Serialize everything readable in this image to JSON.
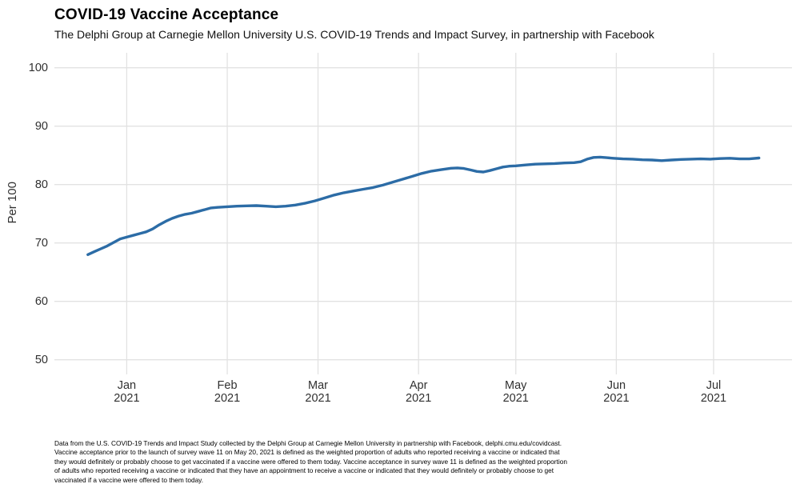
{
  "header": {
    "title": "COVID-19 Vaccine Acceptance",
    "subtitle": "The Delphi Group at Carnegie Mellon University U.S. COVID-19 Trends and Impact Survey, in partnership with Facebook"
  },
  "footnote": {
    "lines": [
      "Data from the U.S. COVID-19 Trends and Impact Study collected by the Delphi Group at Carnegie Mellon University in partnership with Facebook, delphi.cmu.edu/covidcast.",
      "Vaccine acceptance prior to the launch of survey wave 11 on May 20, 2021 is defined as the weighted proportion of adults who reported receiving a vaccine or indicated that",
      "they would definitely or probably choose to get vaccinated if a vaccine were offered to them today. Vaccine acceptance in survey wave 11 is defined as the weighted proportion",
      "of adults who reported receiving a vaccine or indicated that they have an appointment to receive a vaccine or indicated that they would definitely or probably choose to get",
      "vaccinated if a vaccine were offered to them today."
    ]
  },
  "chart_data": {
    "type": "line",
    "title": "COVID-19 Vaccine Acceptance",
    "xlabel": "",
    "ylabel": "Per 100",
    "ylim": [
      50,
      100
    ],
    "x_range": [
      "2020-12-20",
      "2021-07-15"
    ],
    "grid": true,
    "legend": "none",
    "colors": {
      "line": "#2c6ca6",
      "grid": "#e2e2e2",
      "tick_text": "#303030",
      "background": "#ffffff"
    },
    "y_ticks": [
      100,
      90,
      80,
      70,
      60,
      50
    ],
    "x_ticks": [
      {
        "date": "2021-01-01",
        "month": "Jan",
        "year": "2021"
      },
      {
        "date": "2021-02-01",
        "month": "Feb",
        "year": "2021"
      },
      {
        "date": "2021-03-01",
        "month": "Mar",
        "year": "2021"
      },
      {
        "date": "2021-04-01",
        "month": "Apr",
        "year": "2021"
      },
      {
        "date": "2021-05-01",
        "month": "May",
        "year": "2021"
      },
      {
        "date": "2021-06-01",
        "month": "Jun",
        "year": "2021"
      },
      {
        "date": "2021-07-01",
        "month": "Jul",
        "year": "2021"
      }
    ],
    "series": [
      {
        "name": "COVID-19 vaccine acceptance (per 100)",
        "points": [
          [
            "2020-12-20",
            68.0
          ],
          [
            "2020-12-22",
            68.5
          ],
          [
            "2020-12-24",
            69.0
          ],
          [
            "2020-12-26",
            69.5
          ],
          [
            "2020-12-28",
            70.1
          ],
          [
            "2020-12-30",
            70.7
          ],
          [
            "2021-01-01",
            71.0
          ],
          [
            "2021-01-03",
            71.3
          ],
          [
            "2021-01-05",
            71.6
          ],
          [
            "2021-01-07",
            71.9
          ],
          [
            "2021-01-09",
            72.4
          ],
          [
            "2021-01-11",
            73.1
          ],
          [
            "2021-01-13",
            73.7
          ],
          [
            "2021-01-15",
            74.2
          ],
          [
            "2021-01-17",
            74.6
          ],
          [
            "2021-01-19",
            74.9
          ],
          [
            "2021-01-21",
            75.1
          ],
          [
            "2021-01-23",
            75.4
          ],
          [
            "2021-01-25",
            75.7
          ],
          [
            "2021-01-27",
            76.0
          ],
          [
            "2021-01-29",
            76.1
          ],
          [
            "2021-02-01",
            76.2
          ],
          [
            "2021-02-04",
            76.3
          ],
          [
            "2021-02-07",
            76.35
          ],
          [
            "2021-02-10",
            76.4
          ],
          [
            "2021-02-13",
            76.3
          ],
          [
            "2021-02-16",
            76.2
          ],
          [
            "2021-02-19",
            76.3
          ],
          [
            "2021-02-22",
            76.5
          ],
          [
            "2021-02-25",
            76.8
          ],
          [
            "2021-02-28",
            77.2
          ],
          [
            "2021-03-03",
            77.7
          ],
          [
            "2021-03-06",
            78.2
          ],
          [
            "2021-03-09",
            78.6
          ],
          [
            "2021-03-12",
            78.9
          ],
          [
            "2021-03-15",
            79.2
          ],
          [
            "2021-03-18",
            79.5
          ],
          [
            "2021-03-21",
            79.9
          ],
          [
            "2021-03-24",
            80.4
          ],
          [
            "2021-03-27",
            80.9
          ],
          [
            "2021-03-30",
            81.4
          ],
          [
            "2021-04-02",
            81.9
          ],
          [
            "2021-04-05",
            82.3
          ],
          [
            "2021-04-08",
            82.55
          ],
          [
            "2021-04-11",
            82.8
          ],
          [
            "2021-04-13",
            82.85
          ],
          [
            "2021-04-15",
            82.75
          ],
          [
            "2021-04-17",
            82.5
          ],
          [
            "2021-04-19",
            82.25
          ],
          [
            "2021-04-21",
            82.15
          ],
          [
            "2021-04-23",
            82.4
          ],
          [
            "2021-04-25",
            82.7
          ],
          [
            "2021-04-27",
            83.0
          ],
          [
            "2021-04-29",
            83.15
          ],
          [
            "2021-05-01",
            83.2
          ],
          [
            "2021-05-04",
            83.35
          ],
          [
            "2021-05-07",
            83.5
          ],
          [
            "2021-05-10",
            83.55
          ],
          [
            "2021-05-13",
            83.6
          ],
          [
            "2021-05-16",
            83.7
          ],
          [
            "2021-05-19",
            83.75
          ],
          [
            "2021-05-21",
            83.9
          ],
          [
            "2021-05-23",
            84.35
          ],
          [
            "2021-05-25",
            84.65
          ],
          [
            "2021-05-27",
            84.7
          ],
          [
            "2021-05-29",
            84.6
          ],
          [
            "2021-05-31",
            84.5
          ],
          [
            "2021-06-03",
            84.4
          ],
          [
            "2021-06-06",
            84.35
          ],
          [
            "2021-06-09",
            84.25
          ],
          [
            "2021-06-12",
            84.2
          ],
          [
            "2021-06-15",
            84.1
          ],
          [
            "2021-06-18",
            84.2
          ],
          [
            "2021-06-21",
            84.3
          ],
          [
            "2021-06-24",
            84.35
          ],
          [
            "2021-06-27",
            84.4
          ],
          [
            "2021-06-30",
            84.35
          ],
          [
            "2021-07-03",
            84.45
          ],
          [
            "2021-07-06",
            84.5
          ],
          [
            "2021-07-09",
            84.4
          ],
          [
            "2021-07-12",
            84.4
          ],
          [
            "2021-07-15",
            84.55
          ]
        ]
      }
    ]
  }
}
